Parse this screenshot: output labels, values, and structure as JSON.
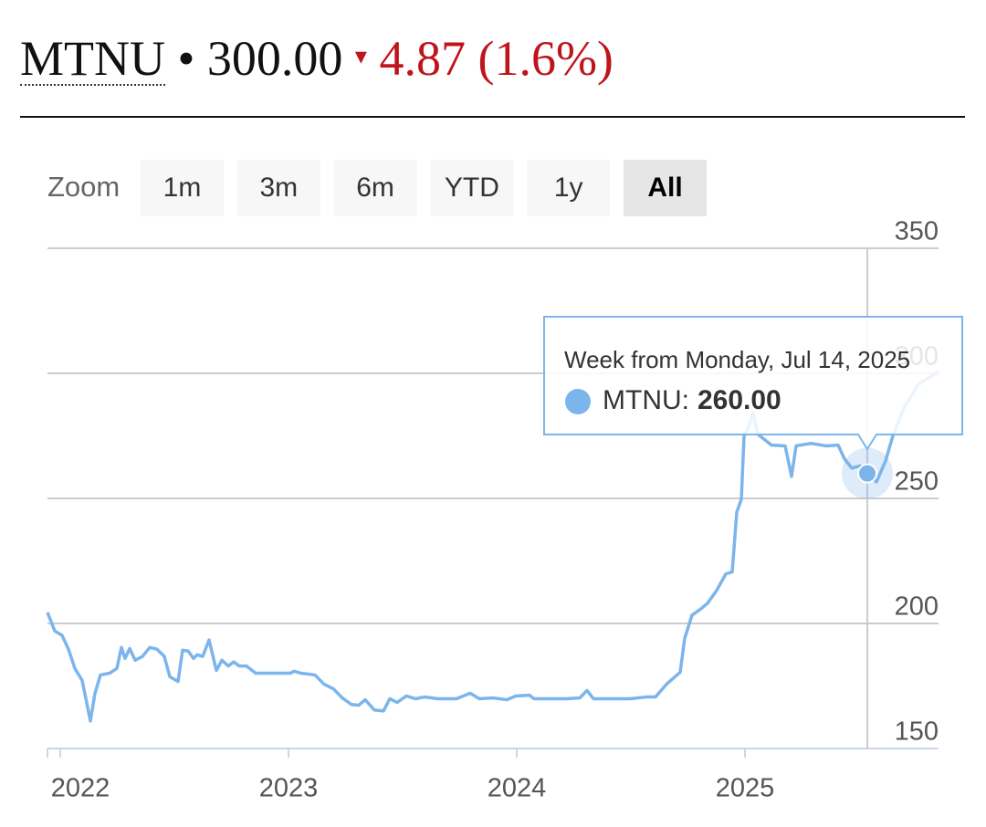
{
  "header": {
    "symbol": "MTNU",
    "separator": "•",
    "price": "300.00",
    "arrow": "▾",
    "change": "4.87 (1.6%)"
  },
  "zoom": {
    "label": "Zoom",
    "buttons": [
      "1m",
      "3m",
      "6m",
      "YTD",
      "1y",
      "All"
    ],
    "active": 5
  },
  "chart_data": {
    "type": "line",
    "x": [
      2021.944,
      2021.976,
      2022.008,
      2022.036,
      2022.064,
      2022.096,
      2022.132,
      2022.152,
      2022.176,
      2022.216,
      2022.248,
      2022.268,
      2022.284,
      2022.304,
      2022.328,
      2022.36,
      2022.392,
      2022.424,
      2022.456,
      2022.48,
      2022.516,
      2022.536,
      2022.56,
      2022.584,
      2022.6,
      2022.624,
      2022.652,
      2022.684,
      2022.708,
      2022.736,
      2022.76,
      2022.784,
      2022.816,
      2022.856,
      2022.936,
      2023.008,
      2023.024,
      2023.056,
      2023.116,
      2023.156,
      2023.196,
      2023.236,
      2023.276,
      2023.308,
      2023.336,
      2023.376,
      2023.416,
      2023.444,
      2023.476,
      2023.516,
      2023.556,
      2023.596,
      2023.656,
      2023.736,
      2023.796,
      2023.836,
      2023.896,
      2023.956,
      2023.996,
      2024.056,
      2024.076,
      2024.216,
      2024.276,
      2024.308,
      2024.336,
      2024.496,
      2024.568,
      2024.608,
      2024.656,
      2024.716,
      2024.736,
      2024.768,
      2024.808,
      2024.836,
      2024.876,
      2024.916,
      2024.944,
      2024.964,
      2024.984,
      2024.996,
      2025.016,
      2025.036,
      2025.056,
      2025.116,
      2025.176,
      2025.204,
      2025.224,
      2025.288,
      2025.356,
      2025.408,
      2025.436,
      2025.468,
      2025.504,
      2025.536,
      2025.576,
      2025.616,
      2025.648,
      2025.696,
      2025.756,
      2025.796,
      2025.848
    ],
    "series": [
      {
        "name": "MTNU",
        "color": "#7cb5ec",
        "values": [
          204.4,
          197,
          195.2,
          189.7,
          182,
          177.2,
          161,
          172,
          179.4,
          180.1,
          182,
          190.4,
          186,
          190,
          185.3,
          186.8,
          190.4,
          189.7,
          186.8,
          178.7,
          176.8,
          189.3,
          189,
          186,
          187.5,
          186.8,
          193.4,
          181.2,
          185.3,
          183,
          184.6,
          183,
          183,
          180.1,
          180.1,
          180.1,
          180.9,
          180.1,
          179.4,
          175.7,
          173.9,
          170.2,
          167.6,
          167.3,
          169.5,
          165.4,
          165,
          169.9,
          168.4,
          171,
          169.9,
          170.6,
          169.9,
          169.9,
          172.1,
          169.9,
          170.2,
          169.5,
          171,
          171.3,
          169.9,
          169.9,
          170.2,
          173.2,
          169.9,
          169.9,
          170.6,
          170.6,
          175.7,
          180.5,
          194.1,
          203.3,
          205.9,
          208.1,
          213.2,
          219.8,
          220.6,
          244.5,
          249.6,
          275,
          278.7,
          284.2,
          275.7,
          271.3,
          271,
          258.8,
          271,
          272,
          271,
          271.3,
          265.8,
          262.1,
          263,
          260,
          256.6,
          265,
          275,
          286,
          295.2,
          297.8,
          300.7
        ]
      }
    ],
    "xlim": [
      2021.944,
      2025.848
    ],
    "xticks": [
      2022,
      2023,
      2024,
      2025
    ],
    "ylim": [
      150,
      350
    ],
    "yticks": [
      150,
      200,
      250,
      300,
      350
    ],
    "grid": true,
    "tooltip": {
      "title": "Week from Monday, Jul 14, 2025",
      "label": "MTNU:",
      "value": 260,
      "value_label": "260.00",
      "x": 2025.536
    }
  }
}
